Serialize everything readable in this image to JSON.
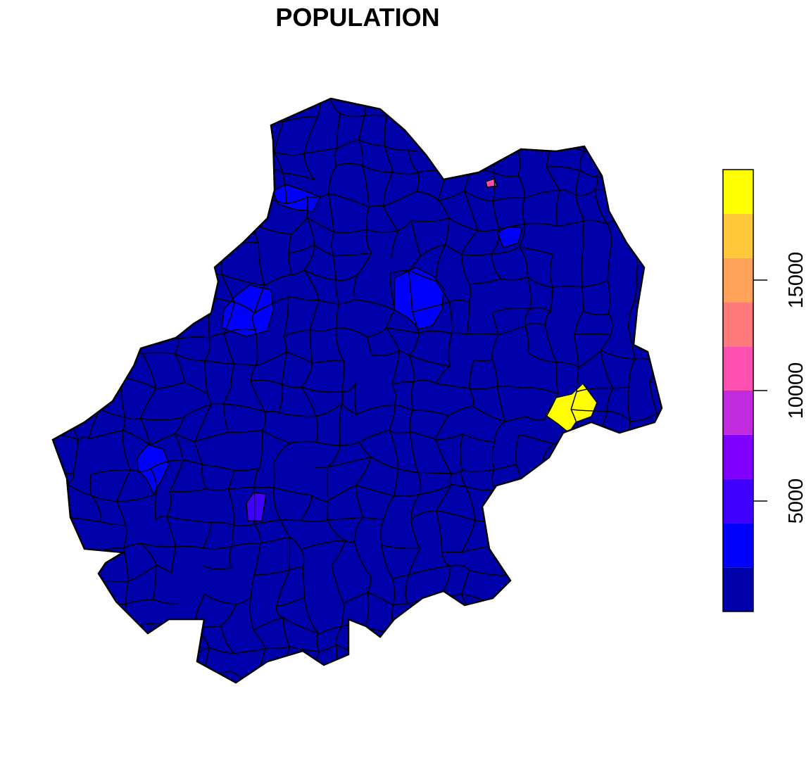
{
  "chart_data": {
    "type": "choropleth",
    "title": "POPULATION",
    "regions": [
      {
        "value": 500
      },
      {
        "value": 3000
      },
      {
        "value": 3000
      },
      {
        "value": 3000
      },
      {
        "value": 3000
      },
      {
        "value": 2500
      },
      {
        "value": 4500
      },
      {
        "value": 10500
      },
      {
        "value": 19500
      }
    ],
    "legend": {
      "breaks": [
        0,
        2000,
        4000,
        6000,
        8000,
        10000,
        12000,
        14000,
        16000,
        18000,
        20000
      ],
      "colors": [
        "#0000AA",
        "#0000FF",
        "#4000FF",
        "#8000FF",
        "#C02BDD",
        "#FF4FAF",
        "#FF7A7A",
        "#FFA35A",
        "#FFC83A",
        "#FFFF00"
      ],
      "ylim": [
        0,
        20000
      ],
      "yticks": [
        5000,
        10000,
        15000
      ]
    }
  }
}
